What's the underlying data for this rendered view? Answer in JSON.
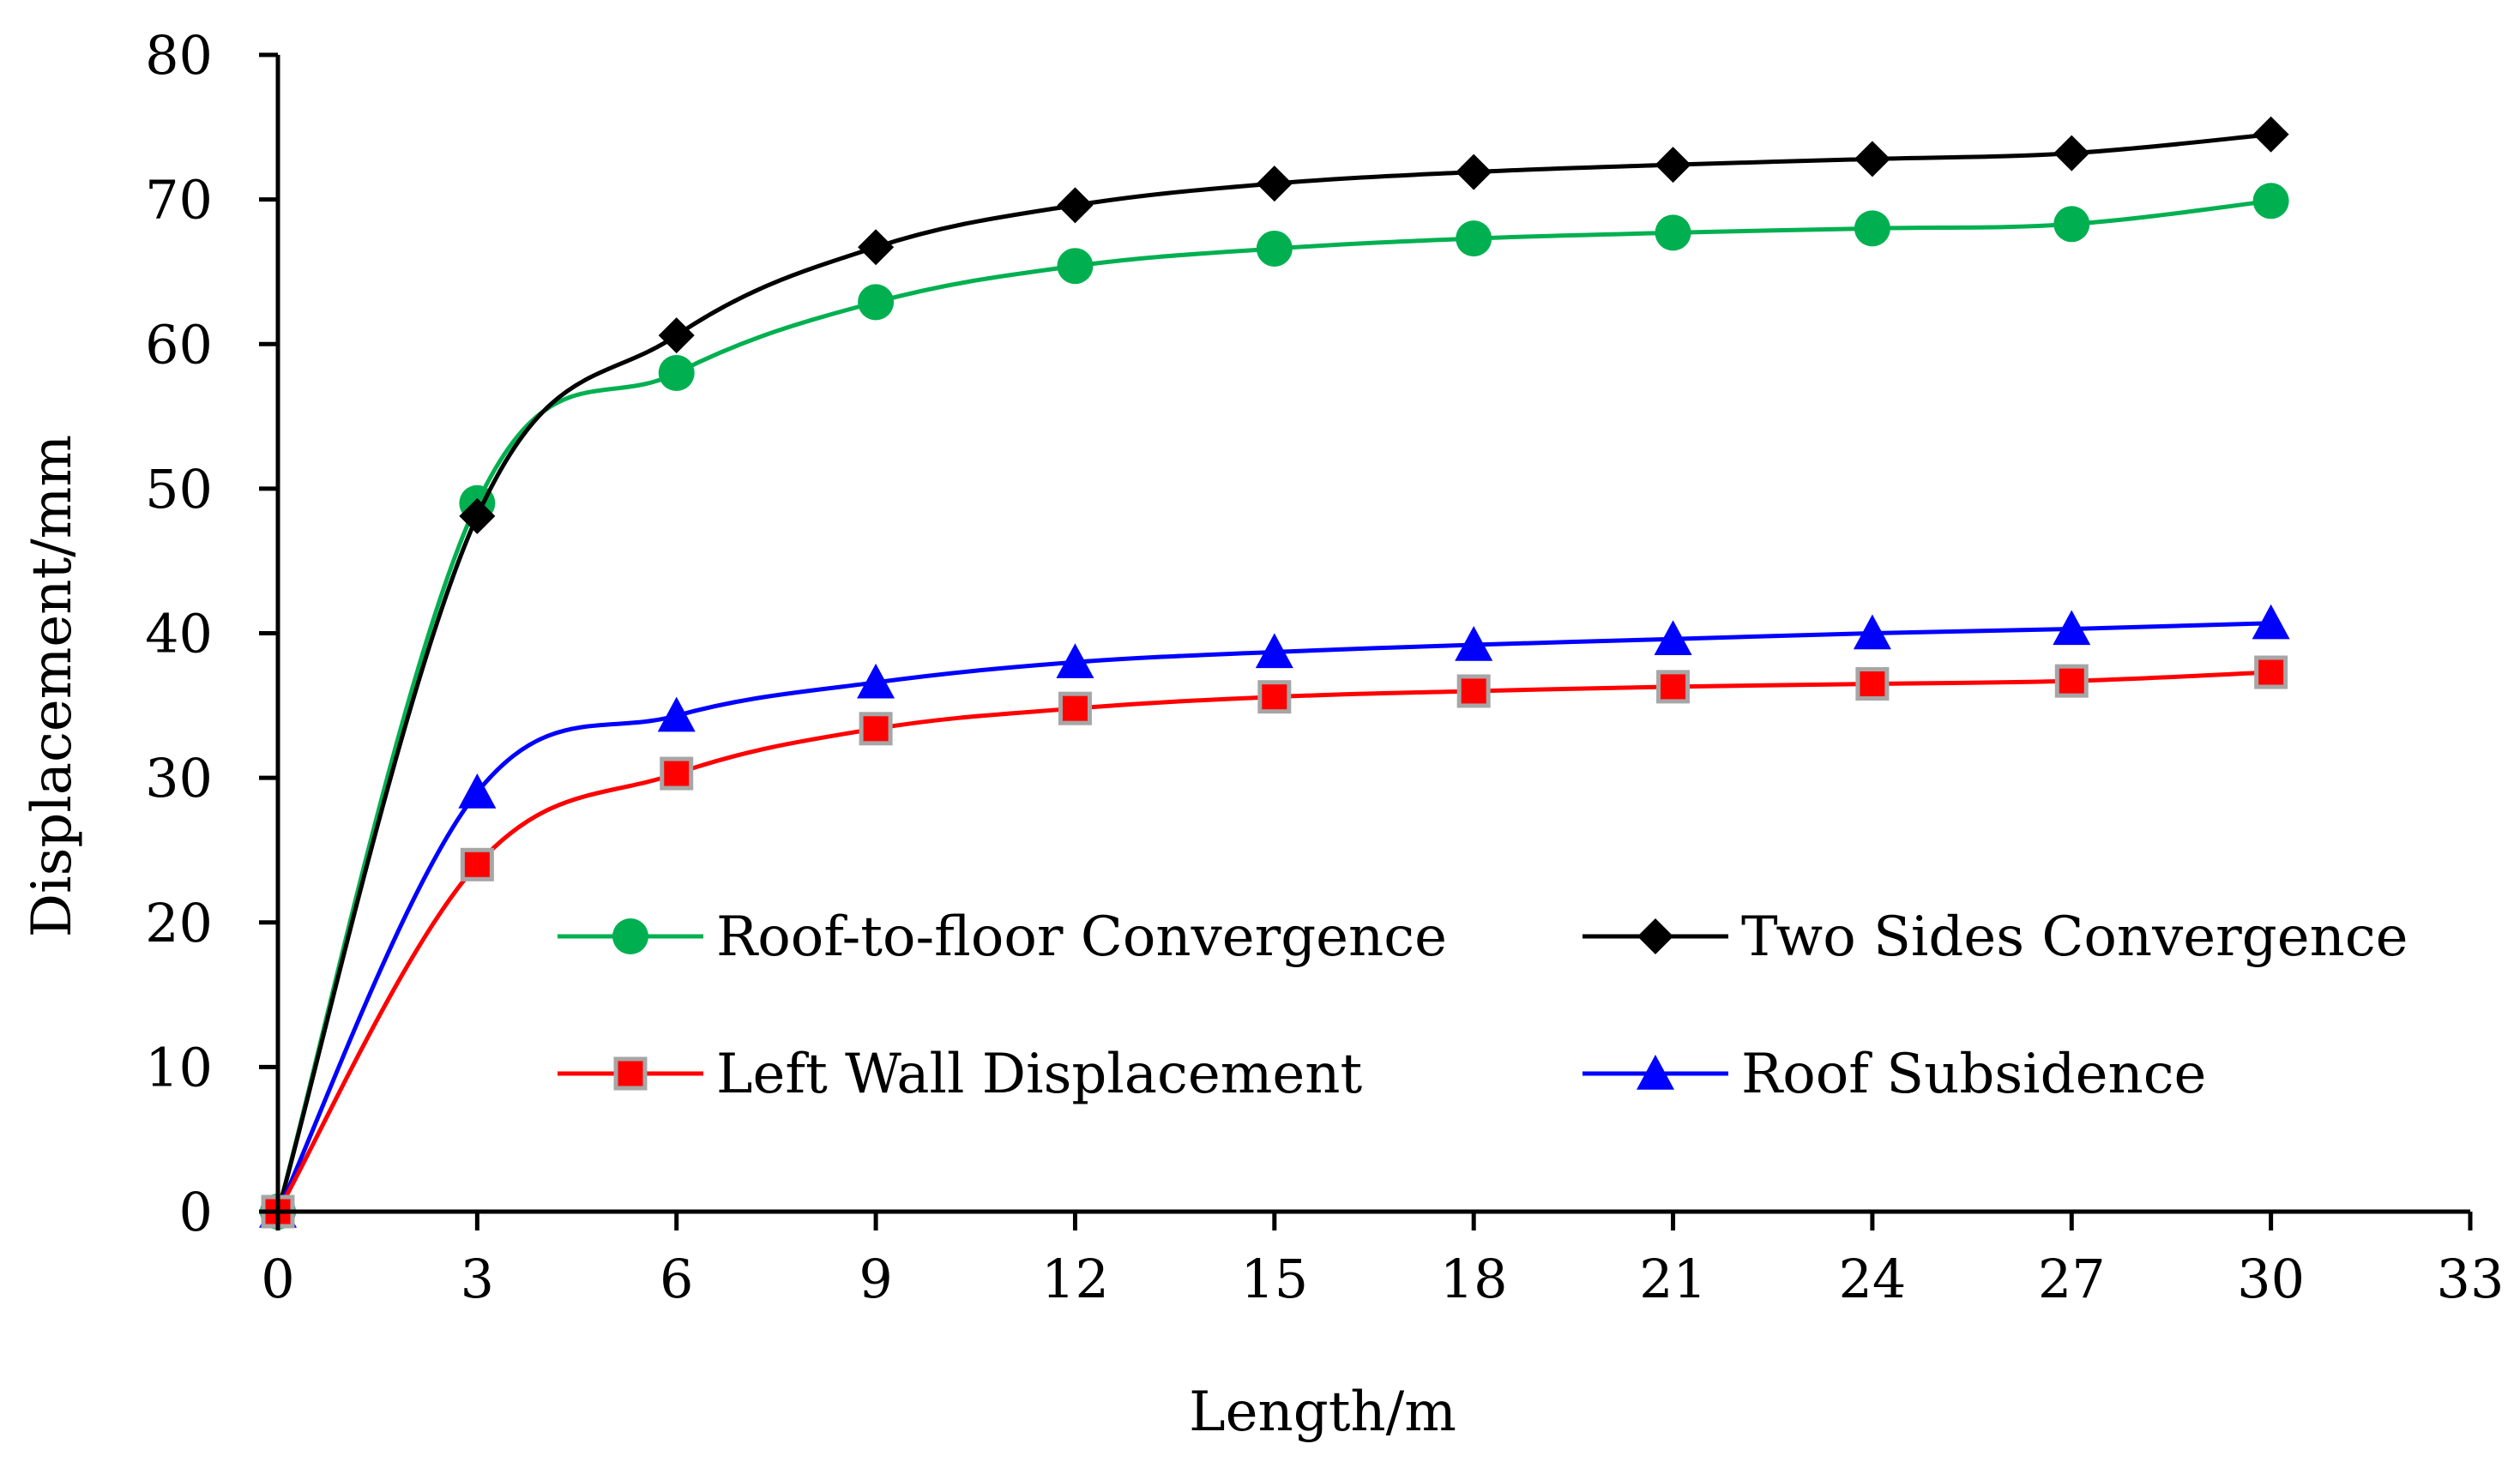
{
  "chart_data": {
    "type": "line",
    "title": "",
    "xlabel": "Length/m",
    "ylabel": "Displacement/mm",
    "xlim": [
      0,
      33
    ],
    "ylim": [
      0,
      80
    ],
    "xticks": [
      0,
      3,
      6,
      9,
      12,
      15,
      18,
      21,
      24,
      27,
      30,
      33
    ],
    "yticks": [
      0,
      10,
      20,
      30,
      40,
      50,
      60,
      70,
      80
    ],
    "x": [
      0,
      3,
      6,
      9,
      12,
      15,
      18,
      21,
      24,
      27,
      30
    ],
    "legend_position": "lower-right inside plot, two columns",
    "series": [
      {
        "name": "Roof-to-floor Convergence",
        "color": "#00b050",
        "marker": "circle",
        "values": [
          0,
          49,
          58,
          62.9,
          65.4,
          66.6,
          67.3,
          67.7,
          68,
          68.3,
          69.9
        ]
      },
      {
        "name": "Two Sides Convergence",
        "color": "#000000",
        "marker": "diamond",
        "values": [
          0,
          48.1,
          60.6,
          66.7,
          69.6,
          71.1,
          71.9,
          72.4,
          72.8,
          73.2,
          74.5
        ]
      },
      {
        "name": "Left Wall Displacement",
        "color": "#ff0000",
        "marker": "square",
        "values": [
          0,
          24,
          30.3,
          33.4,
          34.8,
          35.6,
          36,
          36.3,
          36.5,
          36.7,
          37.3
        ]
      },
      {
        "name": "Roof Subsidence",
        "color": "#0000ff",
        "marker": "triangle",
        "values": [
          0,
          29,
          34.3,
          36.6,
          38,
          38.7,
          39.2,
          39.6,
          40,
          40.3,
          40.7
        ]
      }
    ]
  }
}
